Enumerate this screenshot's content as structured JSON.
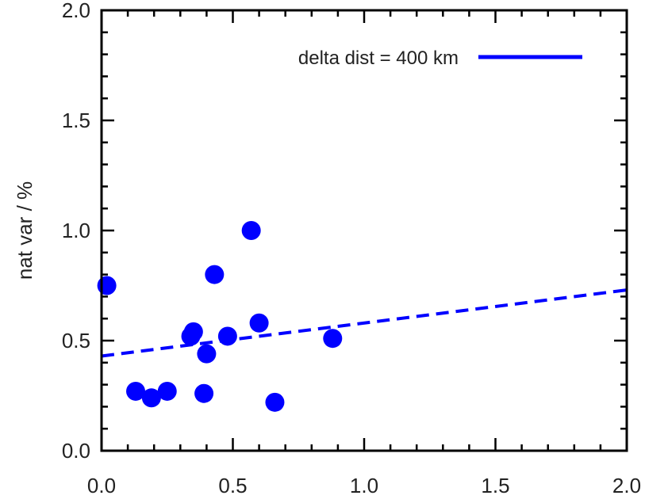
{
  "chart_data": {
    "type": "scatter",
    "title": "",
    "xlabel": "",
    "ylabel": "nat var / %",
    "xlim": [
      0.0,
      2.0
    ],
    "ylim": [
      0.0,
      2.0
    ],
    "x_ticks": [
      "0.0",
      "0.5",
      "1.0",
      "1.5",
      "2.0"
    ],
    "y_ticks": [
      "0.0",
      "0.5",
      "1.0",
      "1.5",
      "2.0"
    ],
    "grid": false,
    "legend_position": "top-right",
    "color": "#0000ff",
    "series": [
      {
        "name": "",
        "style": "points",
        "x": [
          0.02,
          0.13,
          0.19,
          0.25,
          0.34,
          0.35,
          0.39,
          0.4,
          0.43,
          0.48,
          0.57,
          0.6,
          0.66,
          0.88
        ],
        "y": [
          0.75,
          0.27,
          0.24,
          0.27,
          0.52,
          0.54,
          0.26,
          0.44,
          0.8,
          0.52,
          1.0,
          0.58,
          0.22,
          0.51
        ]
      },
      {
        "name": "delta dist = 400 km",
        "style": "dashed-line",
        "x": [
          0.0,
          2.0
        ],
        "y": [
          0.43,
          0.73
        ]
      }
    ]
  }
}
